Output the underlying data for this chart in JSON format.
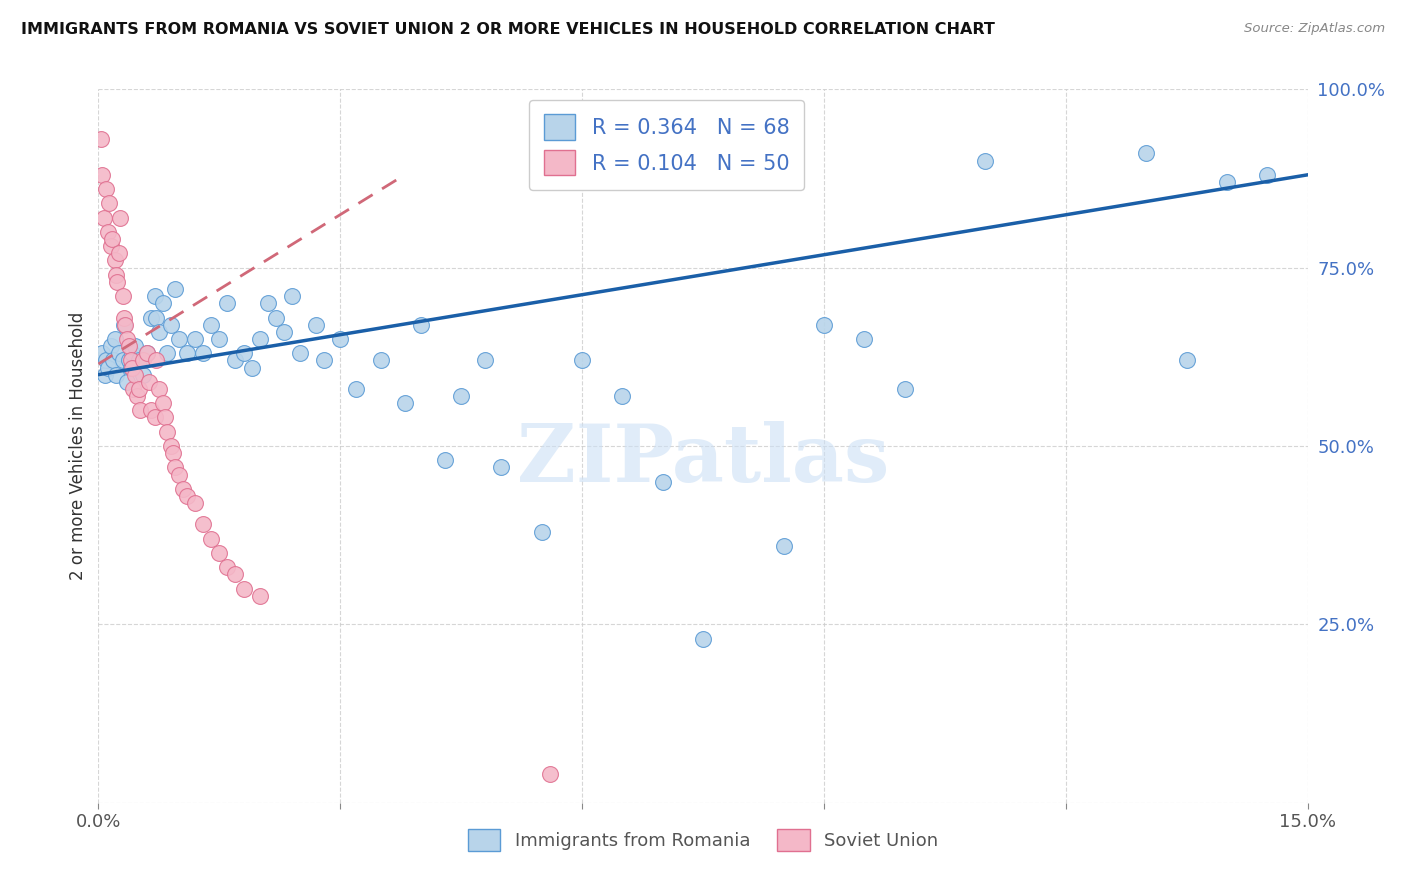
{
  "title": "IMMIGRANTS FROM ROMANIA VS SOVIET UNION 2 OR MORE VEHICLES IN HOUSEHOLD CORRELATION CHART",
  "source": "Source: ZipAtlas.com",
  "ylabel": "2 or more Vehicles in Household",
  "xmin": 0.0,
  "xmax": 0.15,
  "ymin": 0.0,
  "ymax": 1.0,
  "romania_R": 0.364,
  "romania_N": 68,
  "soviet_R": 0.104,
  "soviet_N": 50,
  "romania_color": "#b8d4ea",
  "romania_edge": "#5b9bd5",
  "soviet_color": "#f4b8c8",
  "soviet_edge": "#e07090",
  "romania_line_color": "#1a5fa8",
  "soviet_line_color": "#d06878",
  "right_tick_color": "#4472c4",
  "title_color": "#111111",
  "source_color": "#888888",
  "romania_x": [
    0.0005,
    0.0008,
    0.001,
    0.0012,
    0.0015,
    0.0018,
    0.002,
    0.0022,
    0.0025,
    0.003,
    0.0032,
    0.0035,
    0.0038,
    0.004,
    0.0042,
    0.0045,
    0.005,
    0.0055,
    0.006,
    0.0065,
    0.007,
    0.0072,
    0.0075,
    0.008,
    0.0085,
    0.009,
    0.0095,
    0.01,
    0.011,
    0.012,
    0.013,
    0.014,
    0.015,
    0.016,
    0.017,
    0.018,
    0.019,
    0.02,
    0.021,
    0.022,
    0.023,
    0.024,
    0.025,
    0.027,
    0.028,
    0.03,
    0.032,
    0.035,
    0.038,
    0.04,
    0.043,
    0.045,
    0.048,
    0.05,
    0.055,
    0.06,
    0.065,
    0.07,
    0.075,
    0.085,
    0.09,
    0.095,
    0.1,
    0.11,
    0.13,
    0.135,
    0.14,
    0.145
  ],
  "romania_y": [
    0.63,
    0.6,
    0.62,
    0.61,
    0.64,
    0.62,
    0.65,
    0.6,
    0.63,
    0.62,
    0.67,
    0.59,
    0.62,
    0.61,
    0.63,
    0.64,
    0.62,
    0.6,
    0.63,
    0.68,
    0.71,
    0.68,
    0.66,
    0.7,
    0.63,
    0.67,
    0.72,
    0.65,
    0.63,
    0.65,
    0.63,
    0.67,
    0.65,
    0.7,
    0.62,
    0.63,
    0.61,
    0.65,
    0.7,
    0.68,
    0.66,
    0.71,
    0.63,
    0.67,
    0.62,
    0.65,
    0.58,
    0.62,
    0.56,
    0.67,
    0.48,
    0.57,
    0.62,
    0.47,
    0.38,
    0.62,
    0.57,
    0.45,
    0.23,
    0.36,
    0.67,
    0.65,
    0.58,
    0.9,
    0.91,
    0.62,
    0.87,
    0.88
  ],
  "soviet_x": [
    0.0003,
    0.0005,
    0.0007,
    0.001,
    0.0012,
    0.0013,
    0.0015,
    0.0017,
    0.002,
    0.0022,
    0.0023,
    0.0025,
    0.0027,
    0.003,
    0.0032,
    0.0033,
    0.0035,
    0.0038,
    0.004,
    0.0042,
    0.0043,
    0.0045,
    0.0048,
    0.005,
    0.0052,
    0.0055,
    0.006,
    0.0063,
    0.0065,
    0.007,
    0.0072,
    0.0075,
    0.008,
    0.0082,
    0.0085,
    0.009,
    0.0092,
    0.0095,
    0.01,
    0.0105,
    0.011,
    0.012,
    0.013,
    0.014,
    0.015,
    0.016,
    0.017,
    0.018,
    0.02,
    0.056
  ],
  "soviet_y": [
    0.93,
    0.88,
    0.82,
    0.86,
    0.8,
    0.84,
    0.78,
    0.79,
    0.76,
    0.74,
    0.73,
    0.77,
    0.82,
    0.71,
    0.68,
    0.67,
    0.65,
    0.64,
    0.62,
    0.61,
    0.58,
    0.6,
    0.57,
    0.58,
    0.55,
    0.62,
    0.63,
    0.59,
    0.55,
    0.54,
    0.62,
    0.58,
    0.56,
    0.54,
    0.52,
    0.5,
    0.49,
    0.47,
    0.46,
    0.44,
    0.43,
    0.42,
    0.39,
    0.37,
    0.35,
    0.33,
    0.32,
    0.3,
    0.29,
    0.04
  ]
}
